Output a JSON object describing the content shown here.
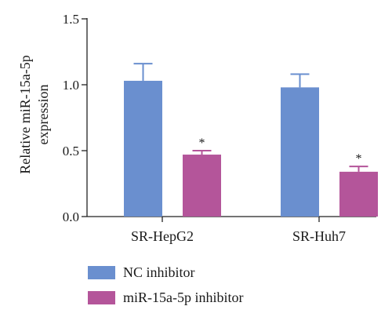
{
  "chart_data": {
    "type": "bar",
    "ylabel_lines": [
      "Relative miR-15a-5p",
      "expression"
    ],
    "ylim": [
      0,
      1.5
    ],
    "yticks": [
      0.0,
      0.5,
      1.0,
      1.5
    ],
    "ytick_labels": [
      "0.0",
      "0.5",
      "1.0",
      "1.5"
    ],
    "categories": [
      "SR-HepG2",
      "SR-Huh7"
    ],
    "series": [
      {
        "name": "NC inhibitor",
        "color": "#6a8fcf",
        "values": [
          1.03,
          0.98
        ],
        "errors": [
          0.13,
          0.1
        ],
        "significance": [
          "",
          ""
        ]
      },
      {
        "name": "miR-15a-5p inhibitor",
        "color": "#b4559a",
        "values": [
          0.47,
          0.34
        ],
        "errors": [
          0.03,
          0.04
        ],
        "significance": [
          "*",
          "*"
        ]
      }
    ],
    "legend_position": "bottom-left",
    "grid": false
  }
}
